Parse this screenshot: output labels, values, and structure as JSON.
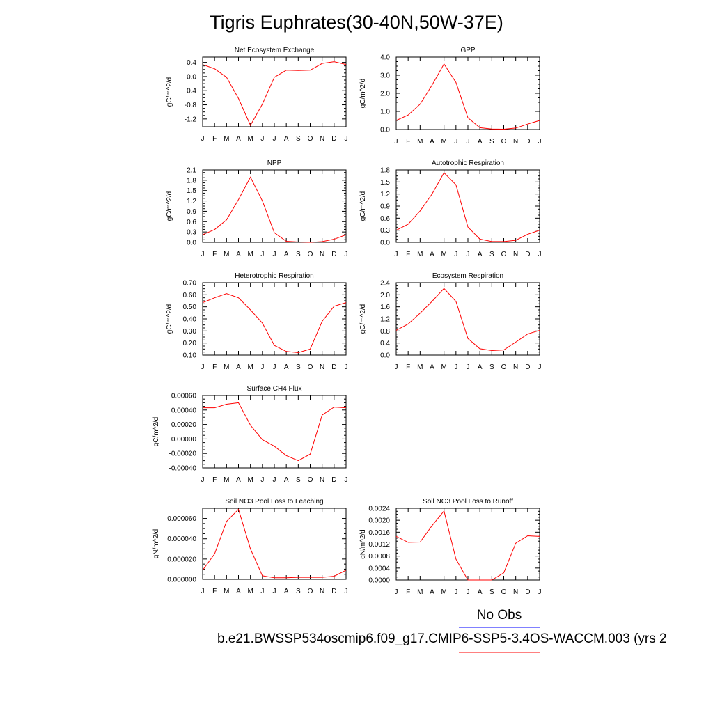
{
  "title": "Tigris Euphrates(30-40N,50W-37E)",
  "legend": {
    "label": "No Obs",
    "line_colors": [
      "#8080ff",
      "#ff8080"
    ]
  },
  "case_name": "b.e21.BWSSP534oscmip6.f09_g17.CMIP6-SSP5-3.4OS-WACCM.003 (yrs 2",
  "series_color": "#ff0000",
  "chart_data": [
    {
      "type": "line",
      "title": "Net Ecosystem Exchange",
      "ylabel": "gC/m^2/d",
      "categories": [
        "J",
        "F",
        "M",
        "A",
        "M",
        "J",
        "J",
        "A",
        "S",
        "O",
        "N",
        "D",
        "J"
      ],
      "values": [
        0.34,
        0.22,
        -0.02,
        -0.62,
        -1.38,
        -0.78,
        -0.02,
        0.18,
        0.17,
        0.18,
        0.37,
        0.42,
        0.34
      ],
      "ylim": [
        -1.42,
        0.55
      ],
      "yticks": [
        -1.2,
        -0.8,
        -0.4,
        0.0,
        0.4
      ],
      "yticklabels": [
        "-1.2",
        "-0.8",
        "-0.4",
        "0.0",
        "0.4"
      ]
    },
    {
      "type": "line",
      "title": "GPP",
      "ylabel": "gC/m^2/d",
      "categories": [
        "J",
        "F",
        "M",
        "A",
        "M",
        "J",
        "J",
        "A",
        "S",
        "O",
        "N",
        "D",
        "J"
      ],
      "values": [
        0.5,
        0.8,
        1.4,
        2.45,
        3.62,
        2.6,
        0.65,
        0.1,
        0.03,
        0.02,
        0.08,
        0.3,
        0.5
      ],
      "ylim": [
        0.0,
        4.0
      ],
      "yticks": [
        0.0,
        1.0,
        2.0,
        3.0,
        4.0
      ],
      "yticklabels": [
        "0.0",
        "1.0",
        "2.0",
        "3.0",
        "4.0"
      ]
    },
    {
      "type": "line",
      "title": "NPP",
      "ylabel": "gC/m^2/d",
      "categories": [
        "J",
        "F",
        "M",
        "A",
        "M",
        "J",
        "J",
        "A",
        "S",
        "O",
        "N",
        "D",
        "J"
      ],
      "values": [
        0.22,
        0.37,
        0.65,
        1.24,
        1.89,
        1.2,
        0.28,
        0.03,
        0.01,
        0.0,
        0.02,
        0.09,
        0.22
      ],
      "ylim": [
        0.0,
        2.1
      ],
      "yticks": [
        0.0,
        0.3,
        0.6,
        0.9,
        1.2,
        1.5,
        1.8,
        2.1
      ],
      "yticklabels": [
        "0.0",
        "0.3",
        "0.6",
        "0.9",
        "1.2",
        "1.5",
        "1.8",
        "2.1"
      ]
    },
    {
      "type": "line",
      "title": "Autotrophic Respiration",
      "ylabel": "gC/m^2/d",
      "categories": [
        "J",
        "F",
        "M",
        "A",
        "M",
        "J",
        "J",
        "A",
        "S",
        "O",
        "N",
        "D",
        "J"
      ],
      "values": [
        0.3,
        0.45,
        0.78,
        1.2,
        1.73,
        1.43,
        0.38,
        0.08,
        0.02,
        0.02,
        0.05,
        0.2,
        0.3
      ],
      "ylim": [
        0.0,
        1.8
      ],
      "yticks": [
        0.0,
        0.3,
        0.6,
        0.9,
        1.2,
        1.5,
        1.8
      ],
      "yticklabels": [
        "0.0",
        "0.3",
        "0.6",
        "0.9",
        "1.2",
        "1.5",
        "1.8"
      ]
    },
    {
      "type": "line",
      "title": "Heterotrophic Respiration",
      "ylabel": "gC/m^2/d",
      "categories": [
        "J",
        "F",
        "M",
        "A",
        "M",
        "J",
        "J",
        "A",
        "S",
        "O",
        "N",
        "D",
        "J"
      ],
      "values": [
        0.535,
        0.575,
        0.61,
        0.575,
        0.475,
        0.365,
        0.18,
        0.13,
        0.12,
        0.15,
        0.38,
        0.505,
        0.535
      ],
      "ylim": [
        0.1,
        0.7
      ],
      "yticks": [
        0.1,
        0.2,
        0.3,
        0.4,
        0.5,
        0.6,
        0.7
      ],
      "yticklabels": [
        "0.10",
        "0.20",
        "0.30",
        "0.40",
        "0.50",
        "0.60",
        "0.70"
      ]
    },
    {
      "type": "line",
      "title": "Ecosystem Respiration",
      "ylabel": "gC/m^2/d",
      "categories": [
        "J",
        "F",
        "M",
        "A",
        "M",
        "J",
        "J",
        "A",
        "S",
        "O",
        "N",
        "D",
        "J"
      ],
      "values": [
        0.82,
        1.03,
        1.39,
        1.78,
        2.21,
        1.78,
        0.55,
        0.21,
        0.15,
        0.17,
        0.43,
        0.7,
        0.82
      ],
      "ylim": [
        0.0,
        2.4
      ],
      "yticks": [
        0.0,
        0.4,
        0.8,
        1.2,
        1.6,
        2.0,
        2.4
      ],
      "yticklabels": [
        "0.0",
        "0.4",
        "0.8",
        "1.2",
        "1.6",
        "2.0",
        "2.4"
      ]
    },
    {
      "type": "line",
      "title": "Surface CH4 Flux",
      "ylabel": "gC/m^2/d",
      "categories": [
        "J",
        "F",
        "M",
        "A",
        "M",
        "J",
        "J",
        "A",
        "S",
        "O",
        "N",
        "D",
        "J"
      ],
      "values": [
        0.00043,
        0.00043,
        0.00048,
        0.0005,
        0.00019,
        -1e-05,
        -0.0001,
        -0.00023,
        -0.0003,
        -0.00021,
        0.00033,
        0.00044,
        0.00043
      ],
      "ylim": [
        -0.0004,
        0.0006
      ],
      "yticks": [
        -0.0004,
        -0.0002,
        0.0,
        0.0002,
        0.0004,
        0.0006
      ],
      "yticklabels": [
        "-0.00040",
        "-0.00020",
        "0.00000",
        "0.00020",
        "0.00040",
        "0.00060"
      ]
    },
    {
      "type": "line",
      "title": "Soil NO3 Pool Loss to Leaching",
      "ylabel": "gN/m^2/d",
      "categories": [
        "J",
        "F",
        "M",
        "A",
        "M",
        "J",
        "J",
        "A",
        "S",
        "O",
        "N",
        "D",
        "J"
      ],
      "values": [
        9e-06,
        2.5e-05,
        5.7e-05,
        6.9e-05,
        3e-05,
        3.5e-06,
        1.5e-06,
        1.5e-06,
        2e-06,
        2e-06,
        2e-06,
        3e-06,
        9e-06
      ],
      "ylim": [
        0.0,
        7e-05
      ],
      "yticks": [
        0.0,
        2e-05,
        4e-05,
        6e-05
      ],
      "yticklabels": [
        "0.000000",
        "0.000020",
        "0.000040",
        "0.000060"
      ]
    },
    {
      "type": "line",
      "title": "Soil NO3 Pool Loss to Runoff",
      "ylabel": "gN/m^2/d",
      "categories": [
        "J",
        "F",
        "M",
        "A",
        "M",
        "J",
        "J",
        "A",
        "S",
        "O",
        "N",
        "D",
        "J"
      ],
      "values": [
        0.00146,
        0.00126,
        0.00127,
        0.00182,
        0.00231,
        0.0007,
        0.0,
        0.0,
        0.0,
        0.00024,
        0.00123,
        0.00148,
        0.00146
      ],
      "ylim": [
        0.0,
        0.0024
      ],
      "yticks": [
        0.0,
        0.0004,
        0.0008,
        0.0012,
        0.0016,
        0.002,
        0.0024
      ],
      "yticklabels": [
        "0.0000",
        "0.0004",
        "0.0008",
        "0.0012",
        "0.0016",
        "0.0020",
        "0.0024"
      ]
    }
  ]
}
